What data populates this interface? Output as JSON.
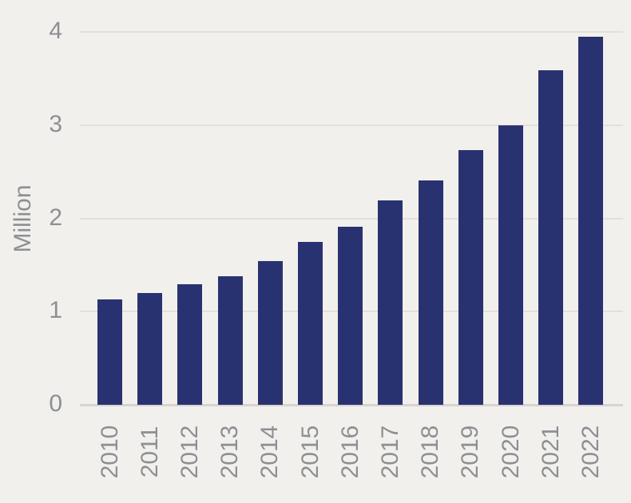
{
  "chart_data": {
    "type": "bar",
    "categories": [
      "2010",
      "2011",
      "2012",
      "2013",
      "2014",
      "2015",
      "2016",
      "2017",
      "2018",
      "2019",
      "2020",
      "2021",
      "2022"
    ],
    "values": [
      1.13,
      1.2,
      1.29,
      1.38,
      1.54,
      1.75,
      1.91,
      2.19,
      2.41,
      2.73,
      3.0,
      3.59,
      3.95
    ],
    "title": "",
    "xlabel": "",
    "ylabel": "Million",
    "ylim": [
      0,
      4
    ],
    "yticks": [
      0,
      1,
      2,
      3,
      4
    ],
    "grid": true,
    "legend": false
  },
  "colors": {
    "background": "#f2f0ed",
    "bar": "#293270",
    "gridline": "#e3dfdb",
    "baseline": "#d8d3cf",
    "label": "#8d8f93"
  }
}
